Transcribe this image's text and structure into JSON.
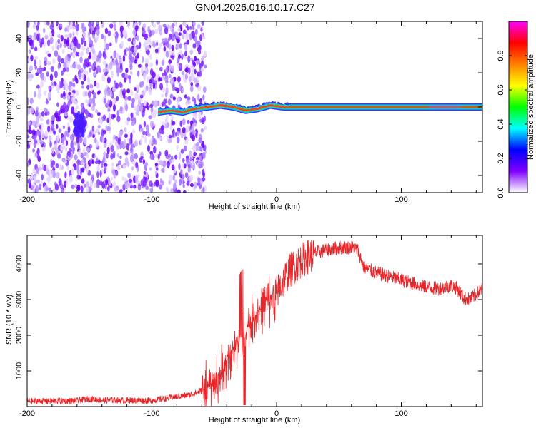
{
  "title": "GN04.2026.016.10.17.C27",
  "chart_data": [
    {
      "type": "heatmap",
      "title": "",
      "xlabel": "Height of straight line (km)",
      "ylabel": "Frequency (Hz)",
      "xlim": [
        -200,
        165
      ],
      "ylim": [
        -50,
        50
      ],
      "x_ticks": [
        -200,
        -100,
        0,
        100
      ],
      "y_ticks": [
        -40,
        -20,
        0,
        20,
        40
      ],
      "colorbar": {
        "label": "Normalized spectral amplitude",
        "range": [
          0,
          1
        ],
        "ticks": [
          0.0,
          0.2,
          0.4,
          0.6,
          0.8
        ],
        "tick_labels": [
          "0.0",
          "0.2",
          "0.4",
          "0.6",
          "0.8"
        ],
        "colors": [
          "#ffffff",
          "#7f00ff",
          "#0000ff",
          "#00ffff",
          "#00ff00",
          "#ffff00",
          "#ff7f00",
          "#ff0000",
          "#ff00ff"
        ]
      },
      "noise_region_x": [
        -200,
        -57
      ],
      "signal_centerline": {
        "x": [
          -95,
          -85,
          -75,
          -65,
          -55,
          -45,
          -35,
          -25,
          -15,
          -5,
          5,
          15,
          50,
          100,
          165
        ],
        "y": [
          -3,
          -2,
          -3,
          -1,
          0,
          1,
          0,
          -2,
          -1,
          1,
          0,
          0,
          0,
          0,
          0
        ]
      },
      "grid": false
    },
    {
      "type": "line",
      "title": "",
      "xlabel": "Height of straight line (km)",
      "ylabel": "SNR (10 * v/v)",
      "xlim": [
        -200,
        165
      ],
      "ylim": [
        0,
        4800
      ],
      "x_ticks": [
        -200,
        -100,
        0,
        100
      ],
      "y_ticks": [
        1000,
        2000,
        3000,
        4000
      ],
      "color": "#e8262a",
      "envelope": {
        "x": [
          -200,
          -160,
          -150,
          -140,
          -100,
          -90,
          -80,
          -70,
          -60,
          -50,
          -45,
          -40,
          -35,
          -30,
          -25,
          -20,
          -15,
          -10,
          -5,
          0,
          5,
          10,
          20,
          30,
          40,
          50,
          60,
          65,
          70,
          80,
          90,
          100,
          110,
          120,
          130,
          135,
          140,
          145,
          150,
          155,
          160,
          165
        ],
        "y": [
          150,
          160,
          220,
          180,
          170,
          220,
          280,
          320,
          450,
          650,
          900,
          1200,
          1600,
          1900,
          2150,
          2400,
          2650,
          2850,
          3000,
          3200,
          3500,
          3800,
          4100,
          4300,
          4400,
          4450,
          4470,
          4400,
          3900,
          3750,
          3650,
          3550,
          3450,
          3350,
          3300,
          3350,
          3400,
          3300,
          3050,
          3000,
          3150,
          3300
        ]
      },
      "grid": false
    }
  ]
}
